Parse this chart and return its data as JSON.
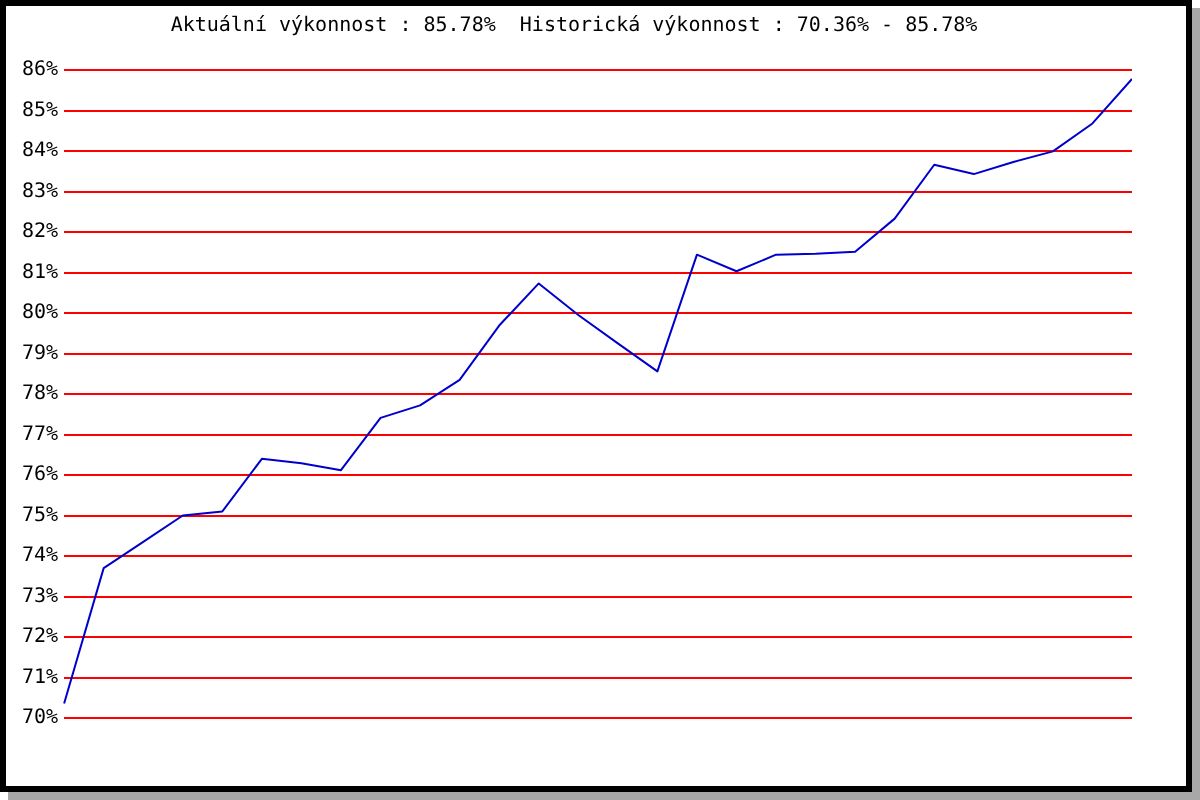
{
  "chart_data": {
    "type": "line",
    "title": "Aktuální výkonnost : 85.78%  Historická výkonnost : 70.36% - 85.78%",
    "categories": [
      null,
      null,
      null,
      null,
      null,
      null,
      null,
      null,
      null,
      null,
      null,
      null,
      null,
      null,
      null,
      null,
      null,
      null,
      null,
      null,
      null,
      null,
      null,
      null,
      null,
      null,
      null,
      null
    ],
    "values": [
      70.36,
      73.7,
      74.35,
      75.0,
      75.1,
      76.4,
      76.29,
      76.12,
      77.41,
      77.72,
      78.35,
      79.69,
      80.73,
      79.95,
      79.25,
      78.56,
      81.44,
      81.03,
      81.44,
      81.46,
      81.51,
      82.33,
      83.66,
      83.43,
      83.73,
      83.99,
      84.68,
      85.78
    ],
    "color": "#0000cc",
    "ylim": [
      70,
      86
    ],
    "yticks": [
      {
        "value": 70,
        "label": "70%"
      },
      {
        "value": 71,
        "label": "71%"
      },
      {
        "value": 72,
        "label": "72%"
      },
      {
        "value": 73,
        "label": "73%"
      },
      {
        "value": 74,
        "label": "74%"
      },
      {
        "value": 75,
        "label": "75%"
      },
      {
        "value": 76,
        "label": "76%"
      },
      {
        "value": 77,
        "label": "77%"
      },
      {
        "value": 78,
        "label": "78%"
      },
      {
        "value": 79,
        "label": "79%"
      },
      {
        "value": 80,
        "label": "80%"
      },
      {
        "value": 81,
        "label": "81%"
      },
      {
        "value": 82,
        "label": "82%"
      },
      {
        "value": 83,
        "label": "83%"
      },
      {
        "value": 84,
        "label": "84%"
      },
      {
        "value": 85,
        "label": "85%"
      },
      {
        "value": 86,
        "label": "86%"
      }
    ],
    "grid": "y",
    "tick_labels": "y",
    "marker": "none",
    "line_style": "solid"
  }
}
